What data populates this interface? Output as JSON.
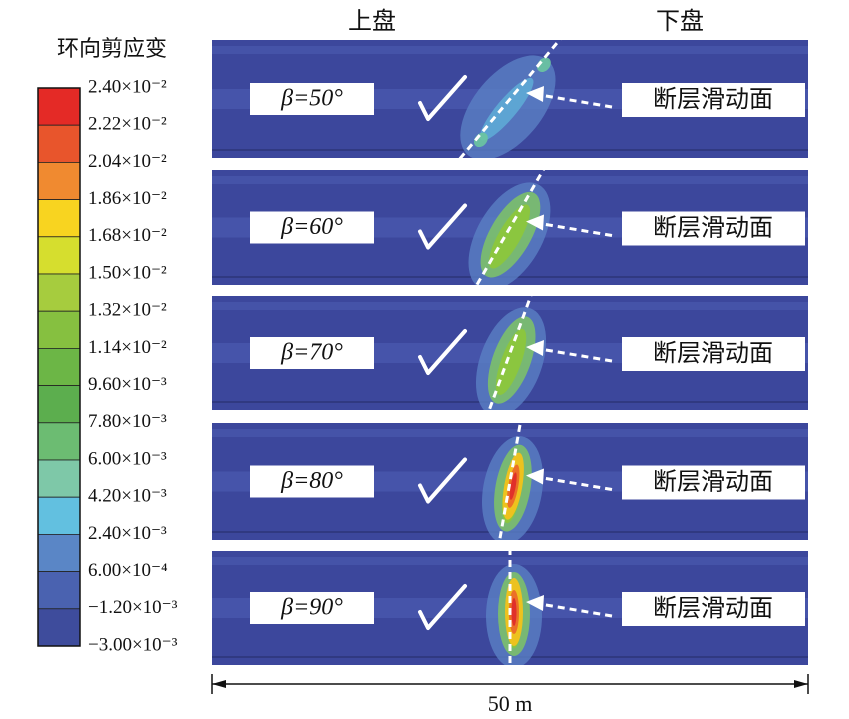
{
  "header": {
    "hanging_wall": "上盘",
    "footwall": "下盘"
  },
  "legend": {
    "title": "环向剪应变",
    "labels": [
      "2.40×10⁻²",
      "2.22×10⁻²",
      "2.04×10⁻²",
      "1.86×10⁻²",
      "1.68×10⁻²",
      "1.50×10⁻²",
      "1.32×10⁻²",
      "1.14×10⁻²",
      "9.60×10⁻³",
      "7.80×10⁻³",
      "6.00×10⁻³",
      "4.20×10⁻³",
      "2.40×10⁻³",
      "6.00×10⁻⁴",
      "−1.20×10⁻³",
      "−3.00×10⁻³"
    ],
    "colors": [
      "#e42a26",
      "#e8552c",
      "#f08a30",
      "#f8d420",
      "#d6de2e",
      "#a6cc3e",
      "#86c040",
      "#6cb646",
      "#5cae4e",
      "#6cbc72",
      "#7ec8a8",
      "#62c0e0",
      "#5a86c6",
      "#4a62b0",
      "#3e4c9c"
    ]
  },
  "panels": [
    {
      "label": "β=50°",
      "beta": 50,
      "annotation": "断层滑动面"
    },
    {
      "label": "β=60°",
      "beta": 60,
      "annotation": "断层滑动面"
    },
    {
      "label": "β=70°",
      "beta": 70,
      "annotation": "断层滑动面"
    },
    {
      "label": "β=80°",
      "beta": 80,
      "annotation": "断层滑动面"
    },
    {
      "label": "β=90°",
      "beta": 90,
      "annotation": "断层滑动面"
    }
  ],
  "scale": "50 m"
}
